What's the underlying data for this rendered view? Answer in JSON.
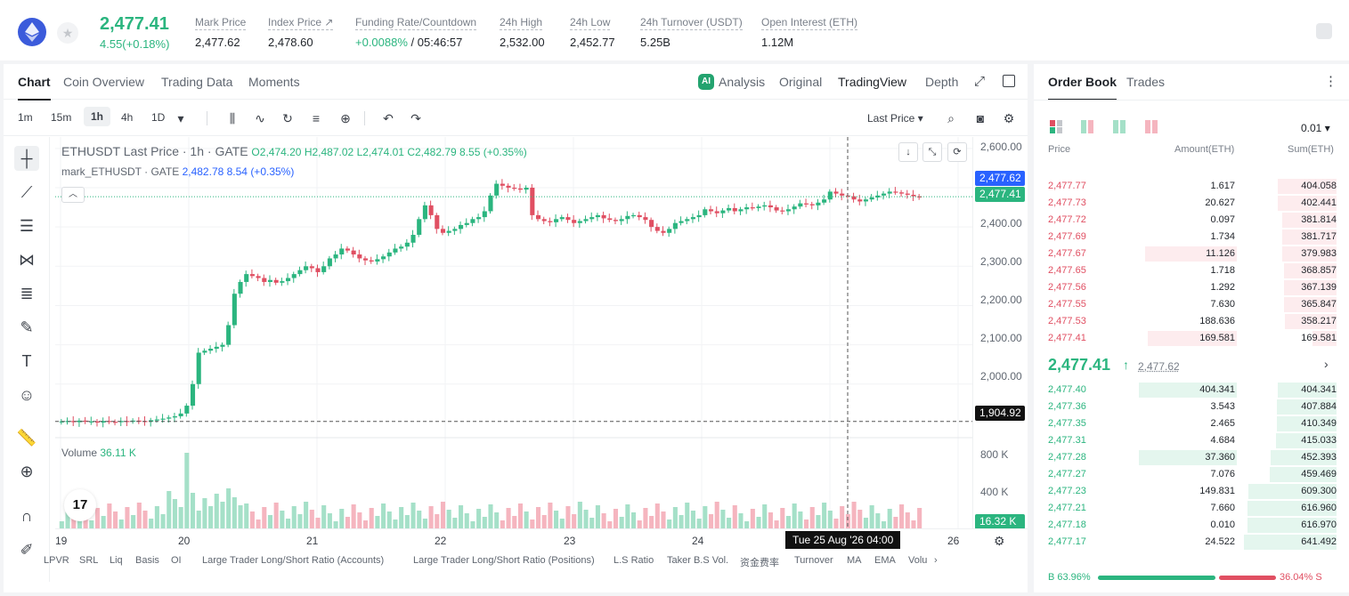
{
  "header": {
    "last_price": "2,477.41",
    "change": "4.55(+0.18%)",
    "stats": [
      {
        "label": "Mark Price",
        "value": "2,477.62"
      },
      {
        "label": "Index Price ↗",
        "value": "2,478.60"
      },
      {
        "label": "Funding Rate/Countdown",
        "value_green": "+0.0088%",
        "value": " / 05:46:57"
      },
      {
        "label": "24h High",
        "value": "2,532.00"
      },
      {
        "label": "24h Low",
        "value": "2,452.77"
      },
      {
        "label": "24h Turnover (USDT)",
        "value": "5.25B"
      },
      {
        "label": "Open Interest (ETH)",
        "value": "1.12M"
      }
    ]
  },
  "chart_tabs": [
    "Chart",
    "Coin Overview",
    "Trading Data",
    "Moments"
  ],
  "views": {
    "analysis": "Analysis",
    "original": "Original",
    "tradingview": "TradingView",
    "depth": "Depth"
  },
  "timeframes": [
    "1m",
    "15m",
    "1h",
    "4h",
    "1D"
  ],
  "price_source": "Last Price",
  "legend": {
    "title": "ETHUSDT Last Price · 1h · GATE",
    "o_label": "O",
    "o": "2,474.20",
    "h_label": "H",
    "h": "2,487.02",
    "l_label": "L",
    "l": "2,474.01",
    "c_label": "C",
    "c": "2,482.79",
    "chg": "8.55 (+0.35%)",
    "mark_name": "mark_ETHUSDT · GATE",
    "mark_vals": "2,482.78  8.54 (+0.35%)"
  },
  "volume_legend": {
    "label": "Volume",
    "value": "36.11 K"
  },
  "price_axis": [
    "2,600.00",
    "2,500.00",
    "2,400.00",
    "2,300.00",
    "2,200.00",
    "2,100.00",
    "2,000.00"
  ],
  "price_tags": {
    "mark": "2,477.62",
    "last": "2,477.41",
    "cursor": "1,904.92"
  },
  "volume_axis": [
    "800 K",
    "400 K"
  ],
  "volume_tag": "16.32 K",
  "time_axis": [
    "19",
    "20",
    "21",
    "22",
    "23",
    "24",
    "25",
    "26"
  ],
  "time_tag": "Tue 25 Aug '26   04:00",
  "indicators": [
    "LPVR",
    "SRL",
    "Liq",
    "Basis",
    "OI",
    "Large Trader Long/Short Ratio (Accounts)",
    "Large Trader Long/Short Ratio (Positions)",
    "L.S Ratio",
    "Taker B.S Vol.",
    "资金费率",
    "Turnover",
    "MA",
    "EMA",
    "Volu"
  ],
  "chart_data": {
    "type": "candlestick",
    "x_range": [
      "19",
      "26"
    ],
    "ylim": [
      1850,
      2620
    ],
    "closes": [
      1905,
      1906,
      1903,
      1907,
      1904,
      1905,
      1902,
      1906,
      1904,
      1903,
      1906,
      1905,
      1907,
      1906,
      1904,
      1908,
      1910,
      1912,
      1915,
      1918,
      1925,
      1945,
      2000,
      2080,
      2085,
      2090,
      2095,
      2100,
      2150,
      2230,
      2260,
      2280,
      2275,
      2270,
      2260,
      2265,
      2258,
      2262,
      2270,
      2280,
      2290,
      2300,
      2295,
      2285,
      2300,
      2320,
      2330,
      2345,
      2340,
      2330,
      2320,
      2315,
      2312,
      2318,
      2325,
      2335,
      2345,
      2350,
      2360,
      2380,
      2420,
      2455,
      2430,
      2395,
      2385,
      2390,
      2395,
      2405,
      2410,
      2420,
      2425,
      2440,
      2480,
      2510,
      2505,
      2500,
      2498,
      2495,
      2500,
      2430,
      2420,
      2415,
      2412,
      2420,
      2425,
      2418,
      2410,
      2415,
      2420,
      2425,
      2430,
      2422,
      2418,
      2415,
      2420,
      2428,
      2430,
      2425,
      2418,
      2400,
      2390,
      2385,
      2395,
      2410,
      2415,
      2420,
      2425,
      2430,
      2445,
      2440,
      2435,
      2442,
      2448,
      2440,
      2445,
      2450,
      2448,
      2452,
      2455,
      2450,
      2442,
      2440,
      2445,
      2452,
      2460,
      2458,
      2455,
      2462,
      2470,
      2490,
      2485,
      2480,
      2478,
      2470,
      2465,
      2470,
      2475,
      2480,
      2485,
      2490,
      2488,
      2485,
      2482,
      2478,
      2475
    ],
    "volume_levels": [
      "low",
      "spike at day 20 (~900K)",
      "moderate thereafter"
    ]
  }
}
